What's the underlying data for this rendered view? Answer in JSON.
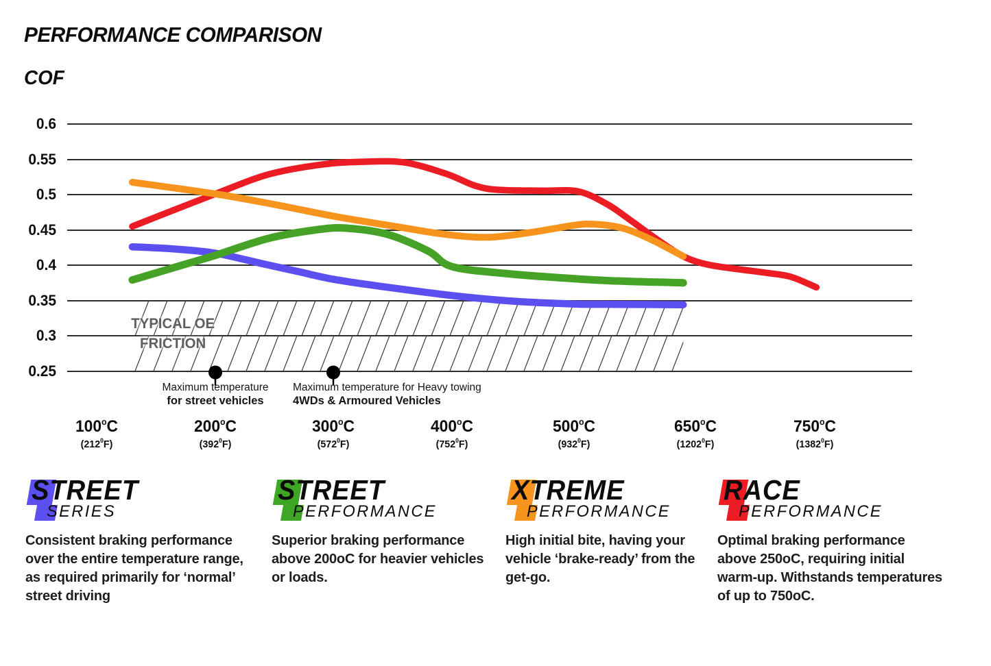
{
  "title": "PERFORMANCE COMPARISON",
  "y_axis_title": "COF",
  "chart_data": {
    "type": "line",
    "title": "PERFORMANCE COMPARISON",
    "ylabel": "COF",
    "ylim": [
      0.25,
      0.6
    ],
    "grid": "horizontal",
    "legend_position": "bottom",
    "y_ticks": [
      "0.6",
      "0.55",
      "0.5",
      "0.45",
      "0.4",
      "0.35",
      "0.3",
      "0.25"
    ],
    "x_axis": {
      "deg_c": "o",
      "unit_c": "C",
      "deg_f": "0",
      "unit_f": "F",
      "ticks": [
        {
          "t": 100,
          "c": "100",
          "f": "212"
        },
        {
          "t": 200,
          "c": "200",
          "f": "392"
        },
        {
          "t": 300,
          "c": "300",
          "f": "572"
        },
        {
          "t": 400,
          "c": "400",
          "f": "752"
        },
        {
          "t": 500,
          "c": "500",
          "f": "932"
        },
        {
          "t": 650,
          "c": "650",
          "f": "1202"
        },
        {
          "t": 750,
          "c": "750",
          "f": "1382"
        }
      ]
    },
    "series": [
      {
        "name": "Street Series",
        "color": "#5B4FF0",
        "points": [
          [
            130,
            0.426
          ],
          [
            165,
            0.423
          ],
          [
            200,
            0.417
          ],
          [
            240,
            0.402
          ],
          [
            270,
            0.391
          ],
          [
            300,
            0.38
          ],
          [
            340,
            0.37
          ],
          [
            400,
            0.357
          ],
          [
            450,
            0.349
          ],
          [
            500,
            0.345
          ],
          [
            550,
            0.3445
          ],
          [
            635,
            0.344
          ]
        ]
      },
      {
        "name": "Street Performance",
        "color": "#46A226",
        "points": [
          [
            130,
            0.379
          ],
          [
            170,
            0.399
          ],
          [
            200,
            0.414
          ],
          [
            245,
            0.438
          ],
          [
            285,
            0.45
          ],
          [
            310,
            0.4525
          ],
          [
            345,
            0.444
          ],
          [
            380,
            0.42
          ],
          [
            400,
            0.398
          ],
          [
            445,
            0.388
          ],
          [
            490,
            0.382
          ],
          [
            545,
            0.378
          ],
          [
            635,
            0.375
          ]
        ]
      },
      {
        "name": "Race Performance",
        "color": "#EC1C24",
        "points": [
          [
            130,
            0.455
          ],
          [
            200,
            0.501
          ],
          [
            245,
            0.5285
          ],
          [
            290,
            0.5425
          ],
          [
            325,
            0.5465
          ],
          [
            360,
            0.5455
          ],
          [
            395,
            0.5295
          ],
          [
            420,
            0.512
          ],
          [
            440,
            0.5065
          ],
          [
            475,
            0.5055
          ],
          [
            505,
            0.5045
          ],
          [
            540,
            0.487
          ],
          [
            570,
            0.4635
          ],
          [
            600,
            0.4385
          ],
          [
            635,
            0.4125
          ],
          [
            660,
            0.401
          ],
          [
            685,
            0.3945
          ],
          [
            710,
            0.389
          ],
          [
            730,
            0.3835
          ],
          [
            752,
            0.3685
          ]
        ]
      },
      {
        "name": "Xtreme Performance",
        "color": "#F7941D",
        "points": [
          [
            130,
            0.5175
          ],
          [
            200,
            0.501
          ],
          [
            250,
            0.486
          ],
          [
            300,
            0.4695
          ],
          [
            350,
            0.4555
          ],
          [
            395,
            0.4435
          ],
          [
            430,
            0.4395
          ],
          [
            465,
            0.4465
          ],
          [
            500,
            0.4565
          ],
          [
            525,
            0.458
          ],
          [
            560,
            0.4525
          ],
          [
            595,
            0.4365
          ],
          [
            635,
            0.4125
          ]
        ]
      }
    ],
    "oe_zone": {
      "label_line1": "TYPICAL OE",
      "label_line2": "FRICTION",
      "cof_top": 0.35,
      "cof_bottom": 0.25,
      "t_start": 130,
      "t_end": 635
    },
    "markers": [
      {
        "t": 200,
        "line1": "Maximum temperature",
        "line2": "for street vehicles"
      },
      {
        "t": 300,
        "line1": "Maximum temperature for Heavy towing",
        "line2": "4WDs & Armoured Vehicles"
      }
    ]
  },
  "legend": {
    "products": [
      {
        "name": "STREET",
        "sub": "SERIES",
        "color": "#5B4FF0",
        "description": "Consistent braking performance over the entire temperature range, as required primarily for ‘normal’ street driving"
      },
      {
        "name": "STREET",
        "sub": "PERFORMANCE",
        "color": "#3EA525",
        "description": "Superior braking performance above 200oC for heavier vehicles or loads."
      },
      {
        "name": "XTREME",
        "sub": "PERFORMANCE",
        "color": "#F7941D",
        "description": "High initial bite, having your vehicle ‘brake-ready’ from the get-go."
      },
      {
        "name": "RACE",
        "sub": "PERFORMANCE",
        "color": "#EC1C24",
        "description": "Optimal braking performance above 250oC, requiring initial warm-up. Withstands temperatures of up to 750oC."
      }
    ]
  }
}
